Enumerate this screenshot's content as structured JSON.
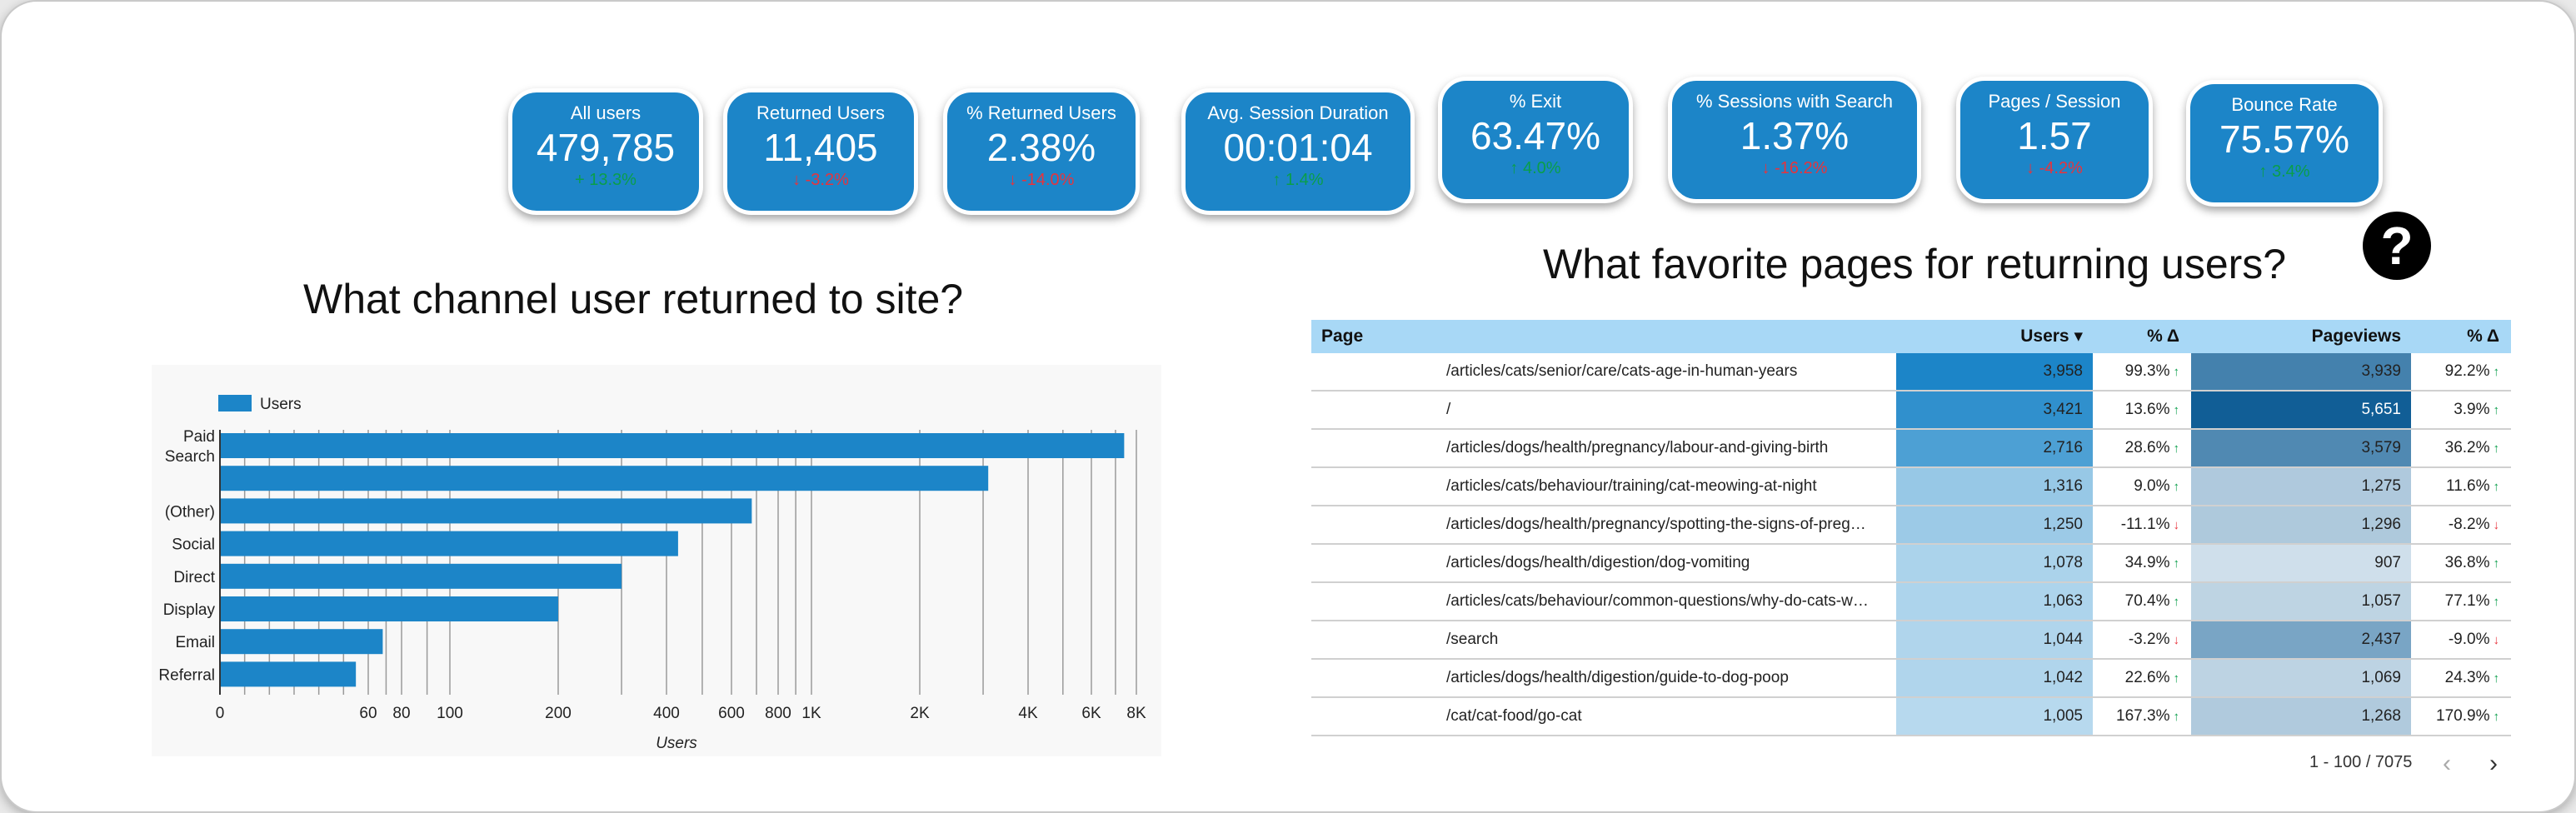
{
  "kpis": [
    {
      "label": "All users",
      "value": "479,785",
      "delta": "+ 13.3%",
      "dir": "up"
    },
    {
      "label": "Returned Users",
      "value": "11,405",
      "delta": "↓ -3.2%",
      "dir": "down"
    },
    {
      "label": "% Returned Users",
      "value": "2.38%",
      "delta": "↓ -14.0%",
      "dir": "down"
    },
    {
      "label": "Avg. Session Duration",
      "value": "00:01:04",
      "delta": "↑ 1.4%",
      "dir": "up"
    },
    {
      "label": "% Exit",
      "value": "63.47%",
      "delta": "↑ 4.0%",
      "dir": "up"
    },
    {
      "label": "% Sessions with Search",
      "value": "1.37%",
      "delta": "↓ -16.2%",
      "dir": "down"
    },
    {
      "label": "Pages / Session",
      "value": "1.57",
      "delta": "↓ -4.2%",
      "dir": "down"
    },
    {
      "label": "Bounce Rate",
      "value": "75.57%",
      "delta": "↑ 3.4%",
      "dir": "up"
    }
  ],
  "help_icon": "question-circle-icon",
  "left_title": "What channel user returned to site?",
  "right_title": "What favorite pages for returning users?",
  "chart_data": {
    "type": "bar",
    "orientation": "horizontal",
    "legend": "top-left",
    "series": [
      {
        "name": "Users",
        "values": [
          7400,
          3100,
          680,
          430,
          300,
          200,
          68,
          55
        ]
      }
    ],
    "categories": [
      "Paid Search",
      "",
      "(Other)",
      "Social",
      "Direct",
      "Display",
      "Email",
      "Referral"
    ],
    "xlabel": "Users",
    "xscale": "log",
    "xlim": [
      0,
      8000
    ],
    "xticks": [
      "0",
      "60",
      "80",
      "100",
      "200",
      "400",
      "600",
      "800",
      "1K",
      "2K",
      "4K",
      "6K",
      "8K"
    ],
    "grid": true,
    "color": "#1c85c8"
  },
  "table": {
    "headers": {
      "page": "Page",
      "users": "Users ▾",
      "users_delta": "% Δ",
      "pageviews": "Pageviews",
      "pv_delta": "% Δ"
    },
    "rows": [
      {
        "page": "/articles/cats/senior/care/cats-age-in-human-years",
        "users": "3,958",
        "ud": "99.3%",
        "ud_dir": "up",
        "pv": "3,939",
        "pd": "92.2%",
        "pd_dir": "up"
      },
      {
        "page": "/",
        "users": "3,421",
        "ud": "13.6%",
        "ud_dir": "up",
        "pv": "5,651",
        "pd": "3.9%",
        "pd_dir": "up"
      },
      {
        "page": "/articles/dogs/health/pregnancy/labour-and-giving-birth",
        "users": "2,716",
        "ud": "28.6%",
        "ud_dir": "up",
        "pv": "3,579",
        "pd": "36.2%",
        "pd_dir": "up"
      },
      {
        "page": "/articles/cats/behaviour/training/cat-meowing-at-night",
        "users": "1,316",
        "ud": "9.0%",
        "ud_dir": "up",
        "pv": "1,275",
        "pd": "11.6%",
        "pd_dir": "up"
      },
      {
        "page": "/articles/dogs/health/pregnancy/spotting-the-signs-of-preg…",
        "users": "1,250",
        "ud": "-11.1%",
        "ud_dir": "down",
        "pv": "1,296",
        "pd": "-8.2%",
        "pd_dir": "down"
      },
      {
        "page": "/articles/dogs/health/digestion/dog-vomiting",
        "users": "1,078",
        "ud": "34.9%",
        "ud_dir": "up",
        "pv": "907",
        "pd": "36.8%",
        "pd_dir": "up"
      },
      {
        "page": "/articles/cats/behaviour/common-questions/why-do-cats-w…",
        "users": "1,063",
        "ud": "70.4%",
        "ud_dir": "up",
        "pv": "1,057",
        "pd": "77.1%",
        "pd_dir": "up"
      },
      {
        "page": "/search",
        "users": "1,044",
        "ud": "-3.2%",
        "ud_dir": "down",
        "pv": "2,437",
        "pd": "-9.0%",
        "pd_dir": "down"
      },
      {
        "page": "/articles/dogs/health/digestion/guide-to-dog-poop",
        "users": "1,042",
        "ud": "22.6%",
        "ud_dir": "up",
        "pv": "1,069",
        "pd": "24.3%",
        "pd_dir": "up"
      },
      {
        "page": "/cat/cat-food/go-cat",
        "users": "1,005",
        "ud": "167.3%",
        "ud_dir": "up",
        "pv": "1,268",
        "pd": "170.9%",
        "pd_dir": "up"
      }
    ],
    "colors": {
      "users_max": "#1c85c8",
      "users_min": "#b7d9ee",
      "pv_max": "#115e96",
      "pv_min": "#cfdfeb"
    },
    "pager": "1 - 100 / 7075"
  }
}
